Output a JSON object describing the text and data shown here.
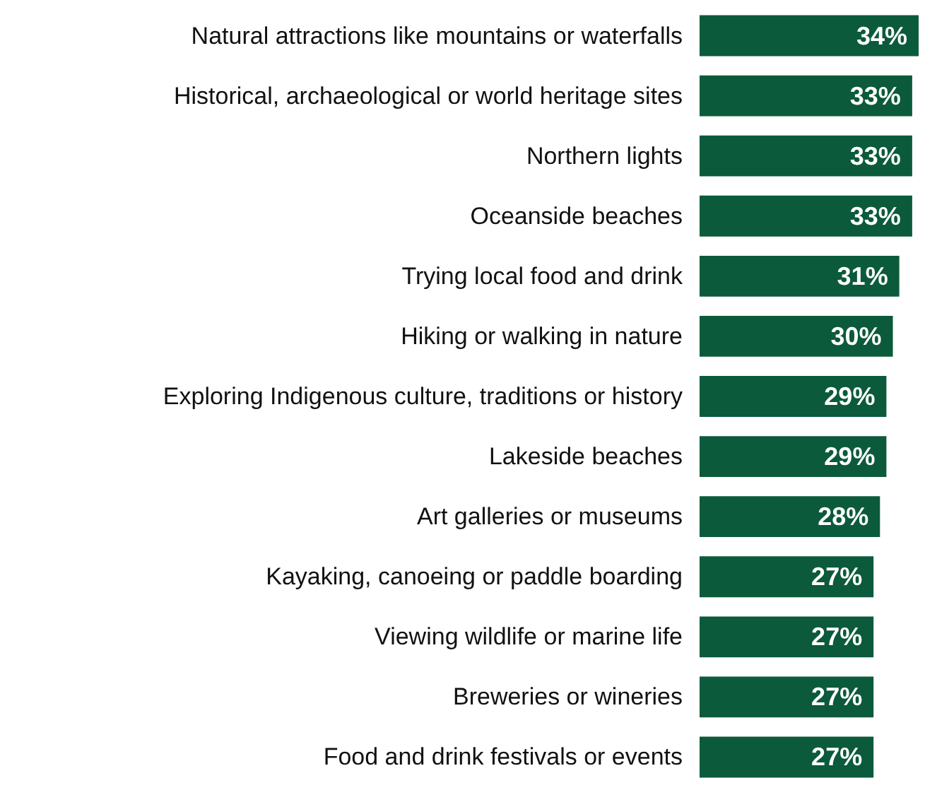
{
  "chart_data": {
    "type": "bar",
    "orientation": "horizontal",
    "categories": [
      "Natural attractions like mountains or waterfalls",
      "Historical, archaeological or world heritage sites",
      "Northern lights",
      "Oceanside beaches",
      "Trying local food and drink",
      "Hiking or walking in nature",
      "Exploring Indigenous culture, traditions or history",
      "Lakeside beaches",
      "Art galleries or museums",
      "Kayaking, canoeing or paddle boarding",
      "Viewing wildlife or marine life",
      "Breweries or wineries",
      "Food and drink festivals or events"
    ],
    "values": [
      34,
      33,
      33,
      33,
      31,
      30,
      29,
      29,
      28,
      27,
      27,
      27,
      27
    ],
    "value_labels": [
      "34%",
      "33%",
      "33%",
      "33%",
      "31%",
      "30%",
      "29%",
      "29%",
      "28%",
      "27%",
      "27%",
      "27%",
      "27%"
    ],
    "color": "#0b5a3b"
  }
}
